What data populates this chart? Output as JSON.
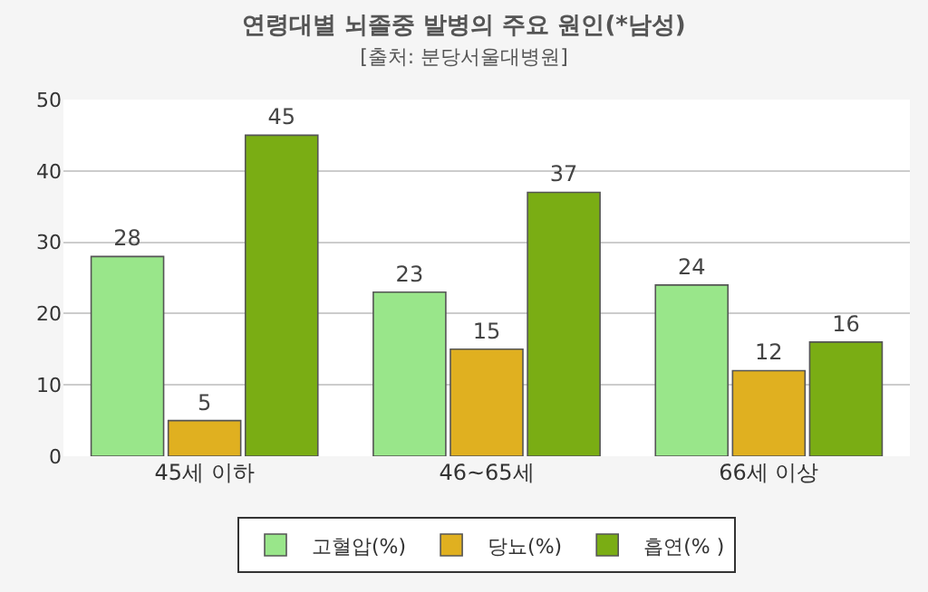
{
  "chart_data": {
    "type": "bar",
    "title": "연령대별 뇌졸중 발병의 주요 원인(*남성)",
    "subtitle": "[출처: 분당서울대병원]",
    "categories": [
      "45세 이하",
      "46~65세",
      "66세 이상"
    ],
    "series": [
      {
        "name": "고혈압(%)",
        "color": "#99e68a",
        "values": [
          28,
          23,
          24
        ]
      },
      {
        "name": "당뇨(%)",
        "color": "#e0b020",
        "values": [
          5,
          15,
          12
        ]
      },
      {
        "name": "흡연(% )",
        "color": "#7aad14",
        "values": [
          45,
          37,
          16
        ]
      }
    ],
    "ylim": [
      0,
      50
    ],
    "yticks": [
      0,
      10,
      20,
      30,
      40,
      50
    ],
    "grid": "y",
    "legend": "bottom",
    "data_labels": true
  }
}
